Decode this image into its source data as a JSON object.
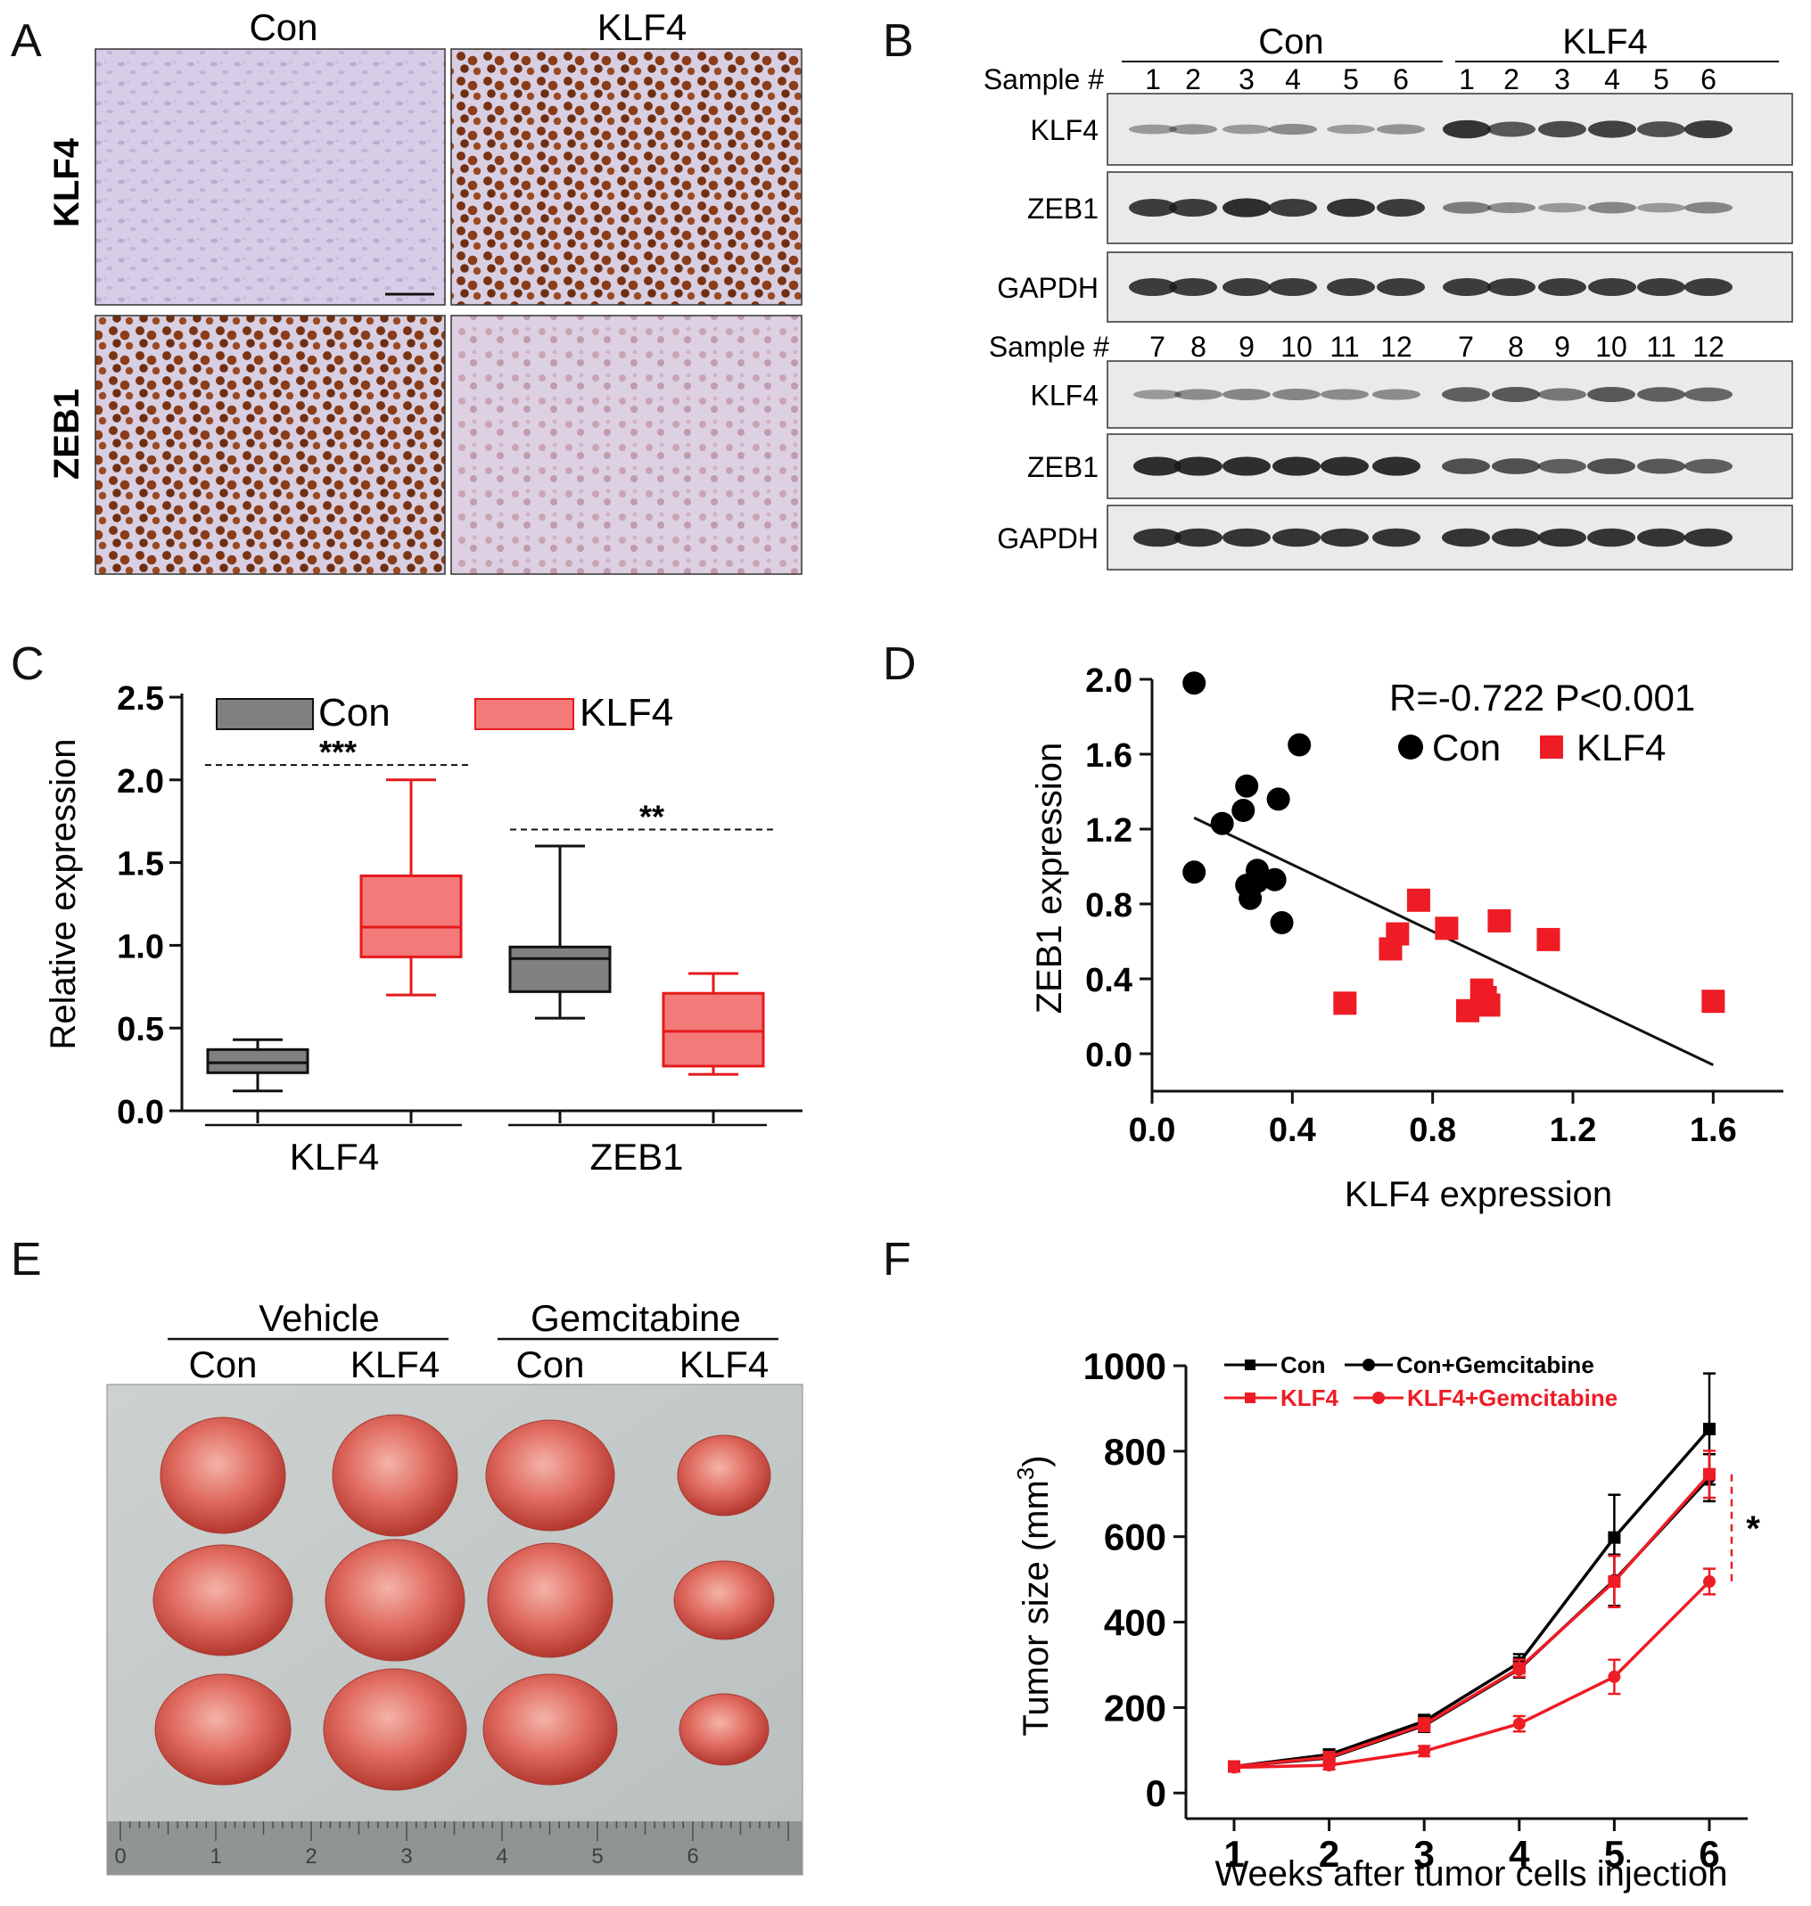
{
  "panel_letters": [
    "A",
    "B",
    "C",
    "D",
    "E",
    "F"
  ],
  "panel_a": {
    "columns": [
      "Con",
      "KLF4"
    ],
    "rows": [
      "KLF4",
      "ZEB1"
    ]
  },
  "panel_b": {
    "groups": [
      "Con",
      "KLF4"
    ],
    "sample_label": "Sample #",
    "samples_top": [
      "1",
      "2",
      "3",
      "4",
      "5",
      "6",
      "1",
      "2",
      "3",
      "4",
      "5",
      "6"
    ],
    "samples_bottom": [
      "7",
      "8",
      "9",
      "10",
      "11",
      "12",
      "7",
      "8",
      "9",
      "10",
      "11",
      "12"
    ],
    "blots_top": [
      "KLF4",
      "ZEB1",
      "GAPDH"
    ],
    "blots_bottom": [
      "KLF4",
      "ZEB1",
      "GAPDH"
    ],
    "colors": {
      "band": "#1a1a1a",
      "membrane": "#e9ebea"
    }
  },
  "panel_e": {
    "groups": [
      "Vehicle",
      "Gemcitabine"
    ],
    "columns": [
      "Con",
      "KLF4",
      "Con",
      "KLF4"
    ],
    "ruler_numbers": [
      "0",
      "1",
      "2",
      "3",
      "4",
      "5",
      "6"
    ],
    "colors": {
      "tumor": "#d9534f",
      "background": "#c9cfcf"
    }
  },
  "chart_data": [
    {
      "type": "box",
      "panel": "C",
      "ylabel": "Relative expression",
      "ylim": [
        0,
        2.5
      ],
      "yticks": [
        "0.0",
        "0.5",
        "1.0",
        "1.5",
        "2.0",
        "2.5"
      ],
      "categories": [
        "KLF4",
        "ZEB1"
      ],
      "series": [
        {
          "name": "Con",
          "color": "#808080",
          "boxes": [
            {
              "category": "KLF4",
              "min": 0.12,
              "q1": 0.23,
              "median": 0.29,
              "q3": 0.37,
              "max": 0.43
            },
            {
              "category": "ZEB1",
              "min": 0.56,
              "q1": 0.72,
              "median": 0.92,
              "q3": 0.99,
              "max": 1.6
            }
          ]
        },
        {
          "name": "KLF4",
          "color": "#f05a5a",
          "boxes": [
            {
              "category": "KLF4",
              "min": 0.7,
              "q1": 0.93,
              "median": 1.11,
              "q3": 1.42,
              "max": 2.0
            },
            {
              "category": "ZEB1",
              "min": 0.22,
              "q1": 0.27,
              "median": 0.48,
              "q3": 0.71,
              "max": 0.83
            }
          ]
        }
      ],
      "annotations": [
        {
          "text": "***",
          "category": "KLF4",
          "y": 2.09
        },
        {
          "text": "**",
          "category": "ZEB1",
          "y": 1.7
        }
      ]
    },
    {
      "type": "scatter",
      "panel": "D",
      "xlabel": "KLF4 expression",
      "ylabel": "ZEB1 expression",
      "xlim": [
        0,
        1.8
      ],
      "ylim": [
        -0.2,
        2.0
      ],
      "xticks": [
        "0.0",
        "0.4",
        "0.8",
        "1.2",
        "1.6"
      ],
      "yticks": [
        "0.0",
        "0.4",
        "0.8",
        "1.2",
        "1.6",
        "2.0"
      ],
      "stat_text": "R=-0.722  P<0.001",
      "regression": {
        "x": [
          0.12,
          1.6
        ],
        "y": [
          1.26,
          -0.06
        ]
      },
      "series": [
        {
          "name": "Con",
          "marker": "circle",
          "color": "#000000",
          "x": [
            0.12,
            0.12,
            0.2,
            0.26,
            0.27,
            0.28,
            0.3,
            0.3,
            0.35,
            0.36,
            0.37,
            0.42,
            0.27
          ],
          "y": [
            1.98,
            0.97,
            1.23,
            1.3,
            1.43,
            0.83,
            0.98,
            0.92,
            0.93,
            1.36,
            0.7,
            1.65,
            0.9
          ]
        },
        {
          "name": "KLF4",
          "marker": "square",
          "color": "#ee1c25",
          "x": [
            0.55,
            0.68,
            0.7,
            0.76,
            0.84,
            0.9,
            0.94,
            0.96,
            0.99,
            1.13,
            1.6,
            0.95
          ],
          "y": [
            0.27,
            0.56,
            0.64,
            0.82,
            0.67,
            0.23,
            0.34,
            0.26,
            0.71,
            0.61,
            0.28,
            0.3
          ]
        }
      ]
    },
    {
      "type": "line",
      "panel": "F",
      "xlabel": "Weeks after tumor cells injection",
      "ylabel_main": "Tumor size (mm",
      "ylabel_sup": "3",
      "ylabel_end": ")",
      "ylim": [
        -60,
        1000
      ],
      "yticks": [
        "0",
        "200",
        "400",
        "600",
        "800",
        "1000"
      ],
      "x": [
        1,
        2,
        3,
        4,
        5,
        6
      ],
      "series": [
        {
          "name": "Con",
          "color": "#000000",
          "marker": "square",
          "values": [
            62,
            90,
            168,
            305,
            598,
            852
          ],
          "errors": [
            10,
            12,
            15,
            20,
            100,
            130
          ]
        },
        {
          "name": "Con+Gemcitabine",
          "color": "#000000",
          "marker": "circle",
          "values": [
            62,
            82,
            158,
            290,
            498,
            738
          ],
          "errors": [
            10,
            12,
            15,
            20,
            60,
            55
          ]
        },
        {
          "name": "KLF4",
          "color": "#ee1c25",
          "marker": "square",
          "values": [
            62,
            84,
            160,
            292,
            495,
            746
          ],
          "errors": [
            10,
            12,
            15,
            20,
            60,
            55
          ]
        },
        {
          "name": "KLF4+Gemcitabine",
          "color": "#ee1c25",
          "marker": "circle",
          "values": [
            60,
            65,
            98,
            162,
            272,
            495
          ],
          "errors": [
            8,
            10,
            12,
            18,
            40,
            30
          ]
        }
      ],
      "annotations": [
        {
          "text": "*"
        }
      ]
    }
  ]
}
